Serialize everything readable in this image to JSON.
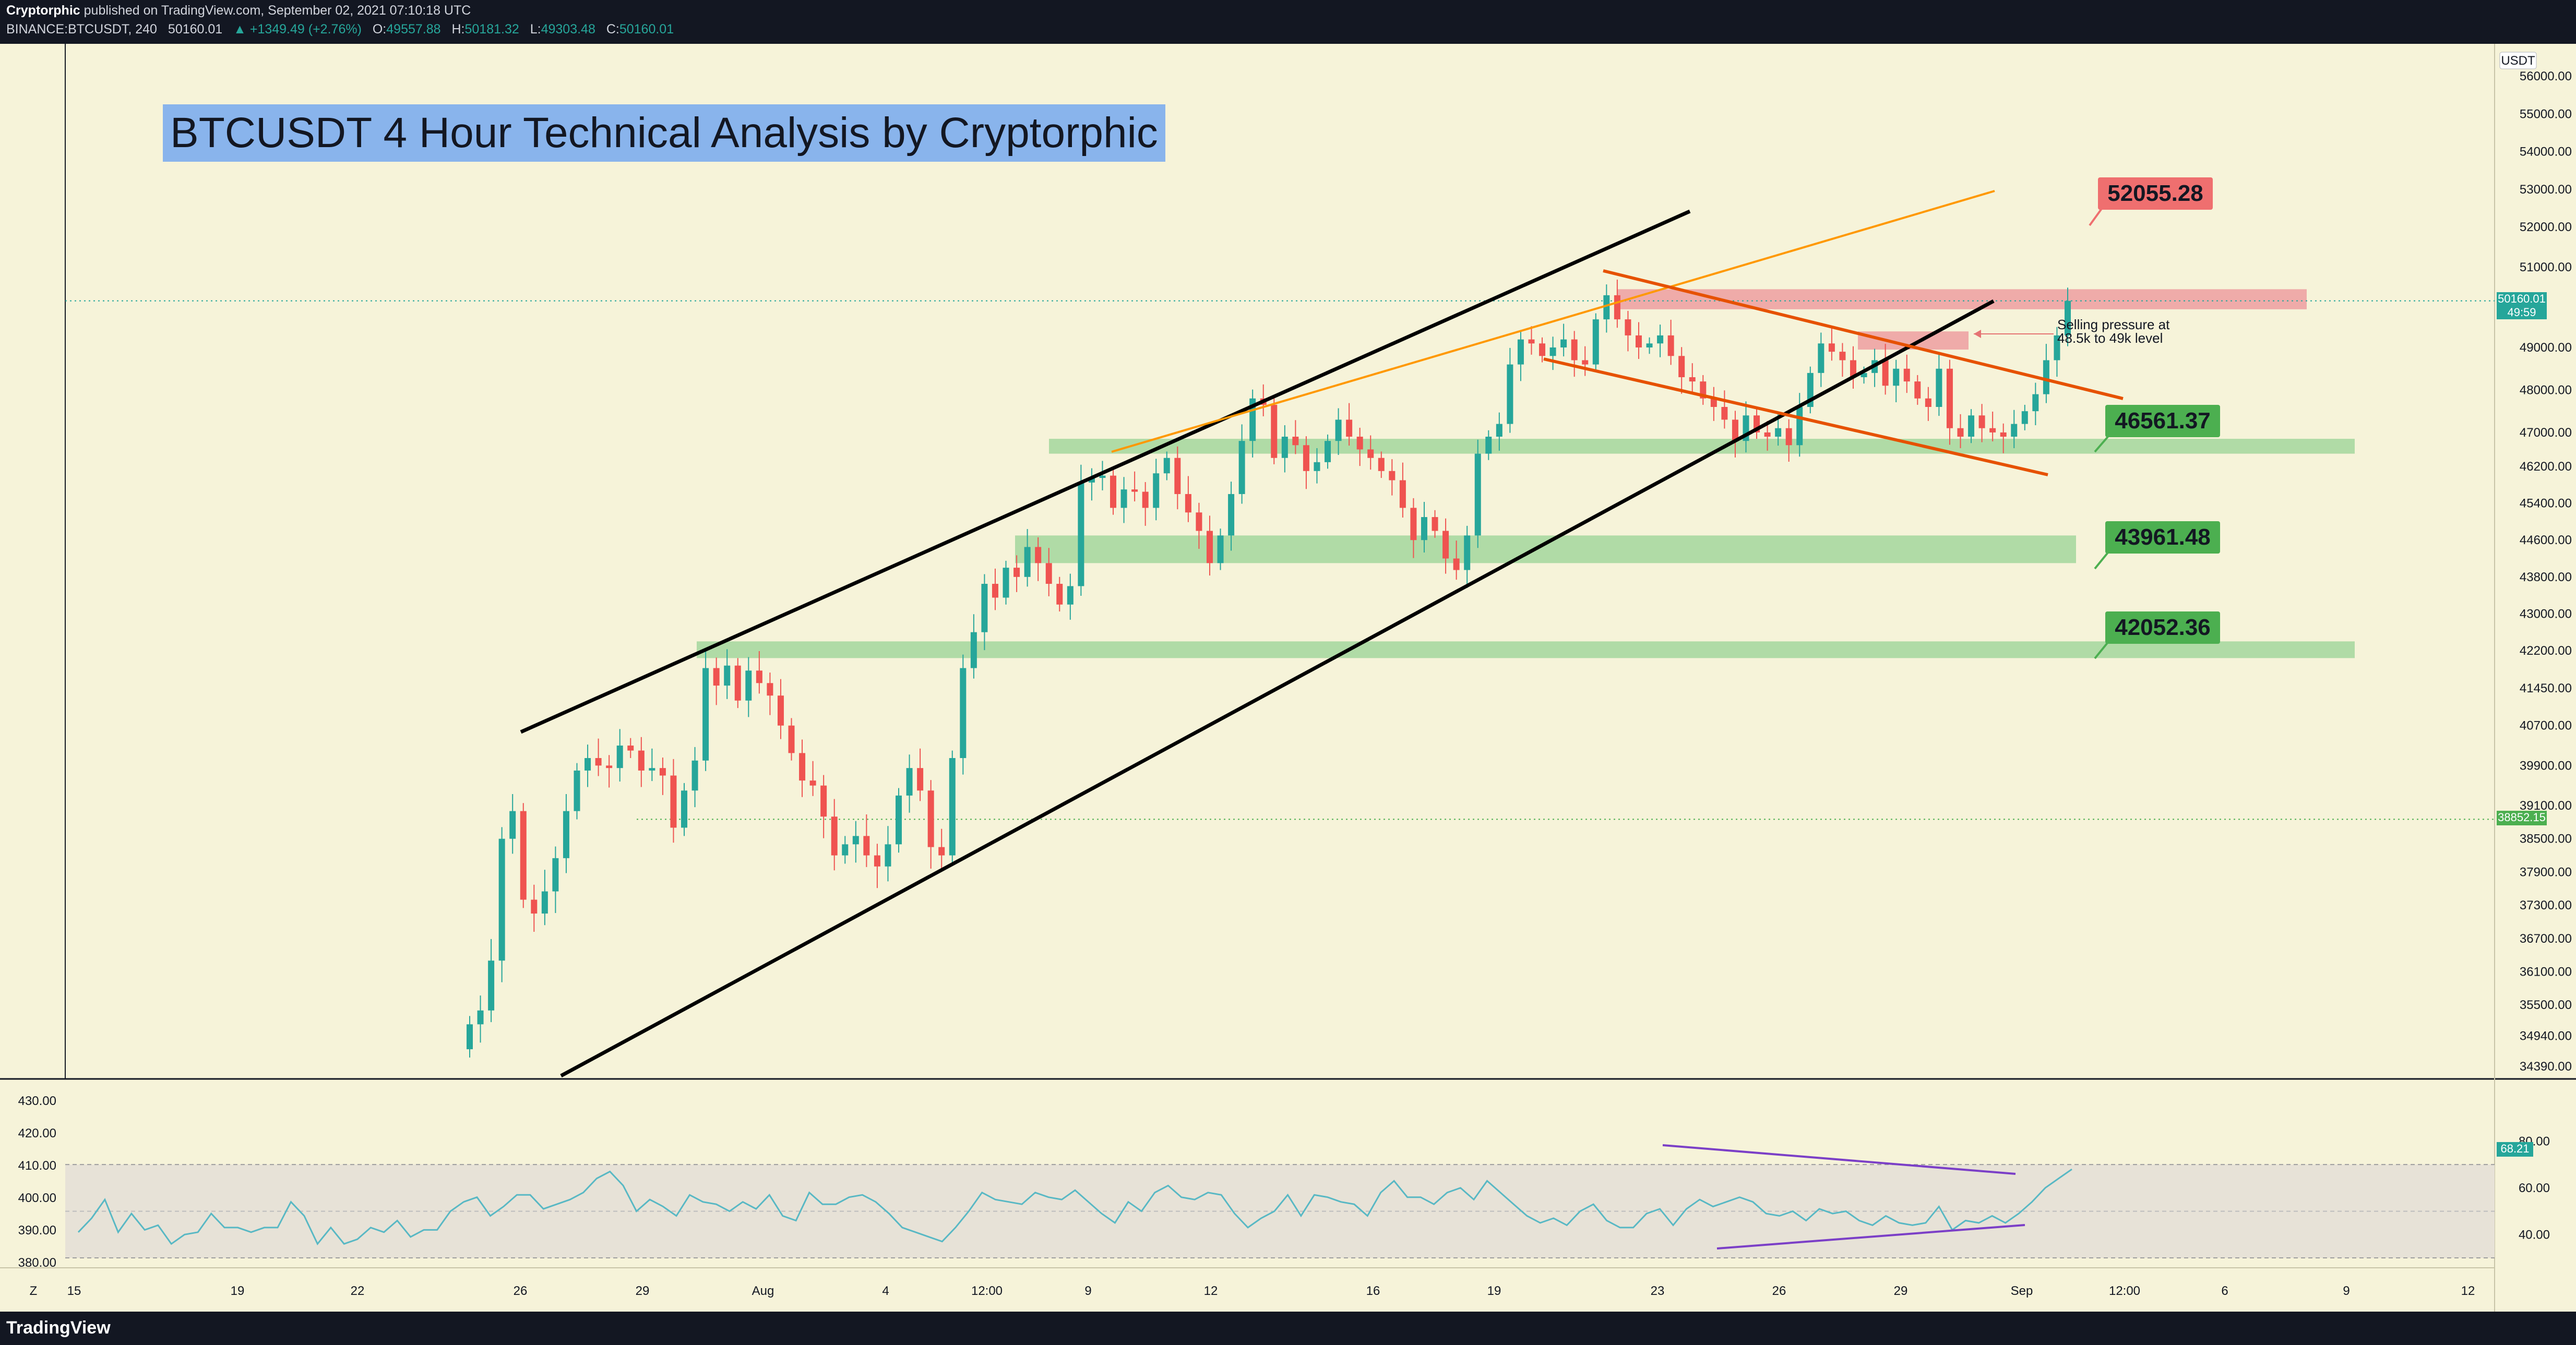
{
  "header": {
    "author": "Cryptorphic",
    "published_text": "published on TradingView.com, September 02, 2021 07:10:18 UTC",
    "symbol": "BINANCE:BTCUSDT, 240",
    "last": "50160.01",
    "change": "▲ +1349.49 (+2.76%)",
    "o_label": "O:",
    "o": "49557.88",
    "h_label": "H:",
    "h": "50181.32",
    "l_label": "L:",
    "l": "49303.48",
    "c_label": "C:",
    "c": "50160.01"
  },
  "footer": {
    "logo": "TradingView"
  },
  "annotations": {
    "title": "BTCUSDT 4 Hour Technical Analysis by Cryptorphic",
    "note_line1": "Selling pressure at",
    "note_line2": "48.5k to 49k level"
  },
  "colors": {
    "background": "#f6f3d9",
    "bull": "#26a69a",
    "bear": "#ef5350",
    "support_zone": "#a9d8a0",
    "resistance_zone": "#eea3a3",
    "channel": "#000000",
    "descending_channel": "#e65100",
    "rising_line": "#ff9800",
    "rsi_line": "#58b8c4",
    "divergence": "#7b3fc7"
  },
  "chart_data": [
    {
      "type": "candlestick",
      "symbol": "BTCUSDT",
      "timeframe": "240",
      "currency_label": "USDT",
      "y_ticks": [
        "56000.00",
        "55000.00",
        "54000.00",
        "53000.00",
        "52000.00",
        "51000.00",
        "49000.00",
        "48000.00",
        "47000.00",
        "46200.00",
        "45400.00",
        "44600.00",
        "43800.00",
        "43000.00",
        "42200.00",
        "41450.00",
        "40700.00",
        "39900.00",
        "39100.00",
        "38500.00",
        "37900.00",
        "37300.00",
        "36700.00",
        "36100.00",
        "35500.00",
        "34940.00",
        "34390.00"
      ],
      "x_ticks": [
        "15",
        "19",
        "22",
        "26",
        "29",
        "Aug",
        "4",
        "12:00",
        "9",
        "12",
        "16",
        "19",
        "23",
        "26",
        "29",
        "Sep",
        "12:00",
        "6",
        "9",
        "12"
      ],
      "ylim": [
        34300,
        56400
      ],
      "price_labels": [
        {
          "value": "50160.01",
          "countdown": "49:59",
          "color": "#26a69a"
        },
        {
          "value": "38852.15",
          "color": "#4caf50"
        }
      ],
      "levels": [
        {
          "label": "52055.28",
          "kind": "target"
        },
        {
          "label": "46561.37",
          "kind": "support"
        },
        {
          "label": "43961.48",
          "kind": "support"
        },
        {
          "label": "42052.36",
          "kind": "support"
        }
      ],
      "zones": [
        {
          "kind": "support",
          "from": 46500,
          "to": 46850
        },
        {
          "kind": "support",
          "from": 44100,
          "to": 44700
        },
        {
          "kind": "support",
          "from": 42050,
          "to": 42400
        },
        {
          "kind": "resistance",
          "from": 49950,
          "to": 50450
        },
        {
          "kind": "resistance",
          "from": 48950,
          "to": 49400
        }
      ],
      "close_series": [
        35150,
        35400,
        36300,
        38500,
        39000,
        37400,
        37150,
        37550,
        38150,
        39000,
        39800,
        40050,
        39900,
        39850,
        40300,
        40200,
        39800,
        39850,
        39700,
        38700,
        39400,
        40000,
        41850,
        41500,
        41900,
        41200,
        41800,
        41550,
        41300,
        40700,
        40150,
        39600,
        39500,
        38900,
        38200,
        38400,
        38550,
        38200,
        38000,
        38400,
        39300,
        39850,
        39400,
        38350,
        38200,
        40050,
        41850,
        42600,
        43650,
        43350,
        44000,
        43800,
        44450,
        44100,
        43650,
        43200,
        43600,
        45850,
        45950,
        46000,
        45300,
        45700,
        45650,
        45300,
        46050,
        46400,
        45600,
        45200,
        44800,
        44100,
        44700,
        45600,
        46800,
        47800,
        47650,
        46400,
        46900,
        46700,
        46100,
        46300,
        46800,
        47300,
        46900,
        46600,
        46400,
        46100,
        45900,
        45300,
        44600,
        45100,
        44800,
        44200,
        43950,
        44700,
        46500,
        46900,
        47200,
        48600,
        49200,
        49100,
        48800,
        49000,
        49200,
        48700,
        48600,
        49700,
        50300,
        49700,
        49300,
        49000,
        49100,
        49300,
        48800,
        48300,
        48200,
        47800,
        47600,
        47300,
        46800,
        47400,
        47000,
        46900,
        47100,
        46700,
        47600,
        48400,
        49100,
        48900,
        48700,
        48300,
        48400,
        48700,
        48100,
        48500,
        48200,
        47800,
        47600,
        48500,
        47100,
        46900,
        47400,
        47100,
        47000,
        46900,
        47200,
        47500,
        47900,
        48700,
        49300,
        50160
      ]
    },
    {
      "type": "line",
      "name": "RSI",
      "y_ticks": [
        "80.00",
        "60.00",
        "40.00"
      ],
      "left_ticks": [
        "430.00",
        "420.00",
        "410.00",
        "400.00",
        "390.00",
        "380.00"
      ],
      "current": "68.21",
      "values": [
        41,
        47,
        55,
        41,
        49,
        42,
        44,
        36,
        40,
        41,
        49,
        43,
        43,
        41,
        43,
        43,
        54,
        48,
        36,
        43,
        36,
        38,
        43,
        41,
        46,
        39,
        42,
        42,
        50,
        54,
        56,
        48,
        52,
        57,
        57,
        51,
        53,
        55,
        58,
        64,
        67,
        61,
        50,
        55,
        52,
        48,
        57,
        54,
        53,
        50,
        54,
        51,
        57,
        48,
        46,
        58,
        53,
        53,
        56,
        57,
        54,
        49,
        43,
        41,
        39,
        37,
        43,
        50,
        58,
        55,
        54,
        53,
        58,
        56,
        55,
        59,
        54,
        49,
        45,
        54,
        50,
        58,
        61,
        56,
        55,
        58,
        57,
        49,
        43,
        47,
        50,
        57,
        48,
        57,
        56,
        54,
        53,
        48,
        58,
        63,
        56,
        56,
        53,
        58,
        60,
        55,
        63,
        58,
        53,
        48,
        45,
        47,
        44,
        50,
        53,
        46,
        43,
        43,
        49,
        51,
        44,
        51,
        55,
        52,
        54,
        56,
        54,
        49,
        48,
        50,
        46,
        51,
        49,
        50,
        46,
        44,
        48,
        45,
        44,
        45,
        52,
        42,
        46,
        45,
        48,
        45,
        49,
        54,
        60,
        64,
        68
      ]
    }
  ]
}
